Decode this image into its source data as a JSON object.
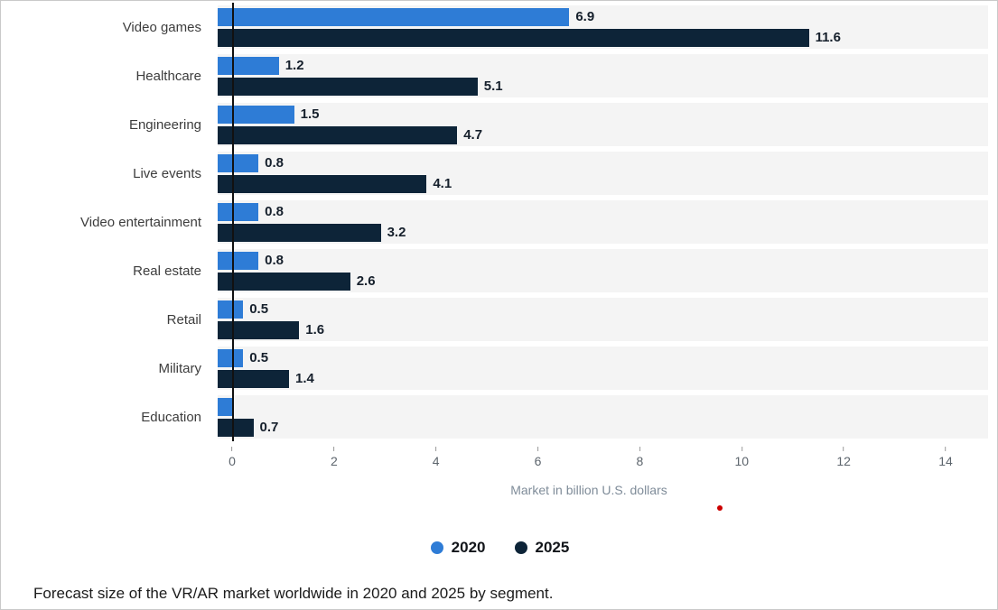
{
  "chart_data": {
    "type": "bar",
    "orientation": "horizontal",
    "title": "",
    "categories": [
      "Video games",
      "Healthcare",
      "Engineering",
      "Live events",
      "Video entertainment",
      "Real estate",
      "Retail",
      "Military",
      "Education"
    ],
    "series": [
      {
        "name": "2020",
        "color": "#2e7cd6",
        "values": [
          6.9,
          1.2,
          1.5,
          0.8,
          0.8,
          0.8,
          0.5,
          0.5,
          0.3
        ],
        "labels": [
          "6.9",
          "1.2",
          "1.5",
          "0.8",
          "0.8",
          "0.8",
          "0.5",
          "0.5",
          ""
        ]
      },
      {
        "name": "2025",
        "color": "#0d2438",
        "values": [
          11.6,
          5.1,
          4.7,
          4.1,
          3.2,
          2.6,
          1.6,
          1.4,
          0.7
        ],
        "labels": [
          "11.6",
          "5.1",
          "4.7",
          "4.1",
          "3.2",
          "2.6",
          "1.6",
          "1.4",
          "0.7"
        ]
      }
    ],
    "xlabel": "Market in billion U.S. dollars",
    "ylabel": "",
    "x_ticks": [
      0,
      2,
      4,
      6,
      8,
      10,
      12,
      14
    ],
    "xlim": [
      0,
      14
    ],
    "grid": false,
    "legend_position": "bottom"
  },
  "caption": "Forecast size of the VR/AR market worldwide in 2020 and 2025 by segment.",
  "colors": {
    "row_band": "#f4f4f4",
    "axis_line": "#111111",
    "tick_text": "#5d656d",
    "axis_label_text": "#7f8c99",
    "marker_dot": "#cc0000"
  }
}
